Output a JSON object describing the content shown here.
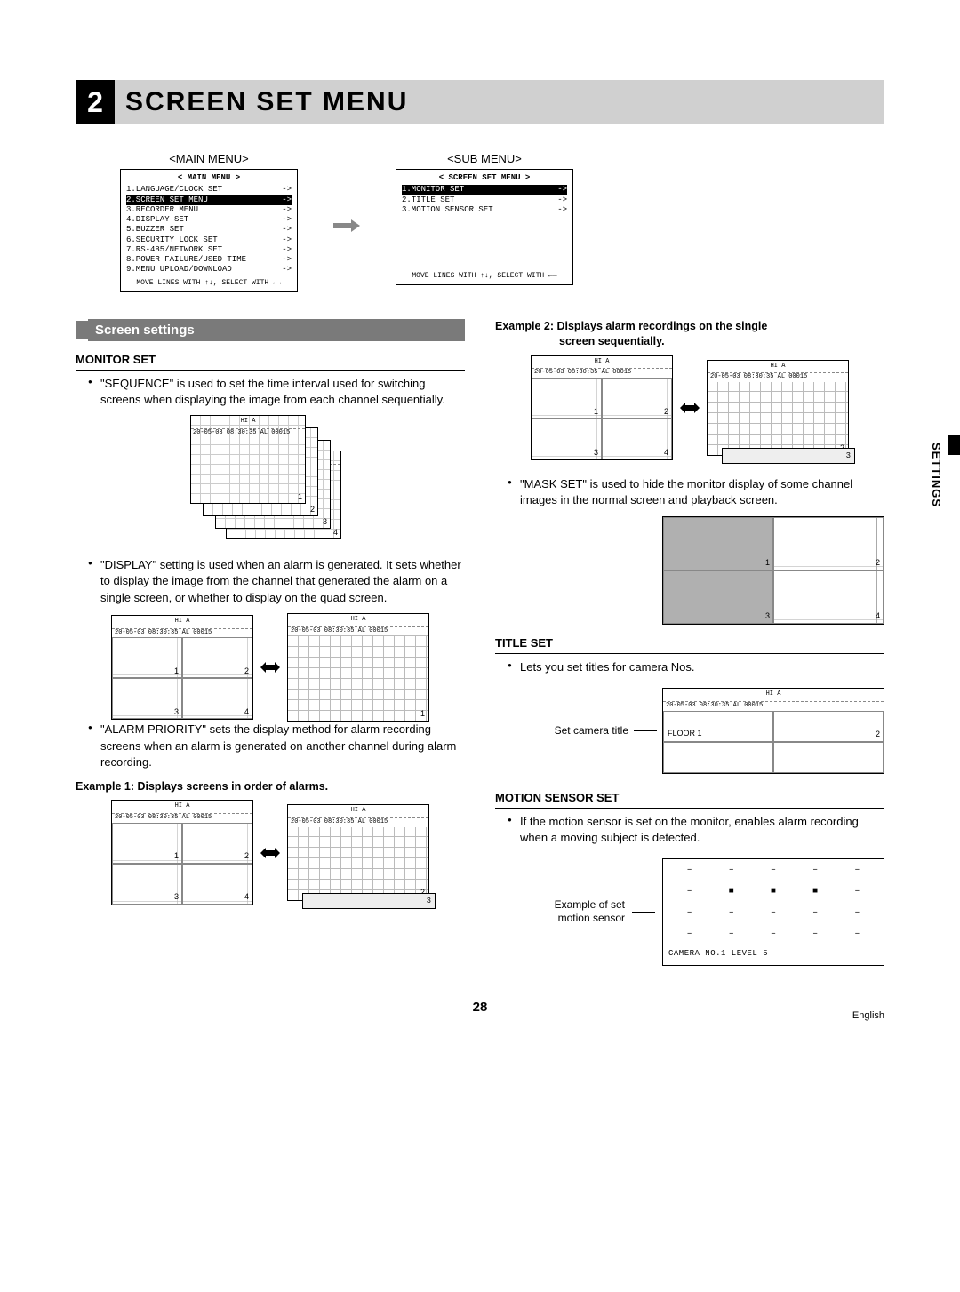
{
  "page": {
    "section_number": "2",
    "title": "SCREEN SET MENU",
    "side_tab": "SETTINGS",
    "page_number": "28",
    "language": "English"
  },
  "menus": {
    "main_label": "<MAIN MENU>",
    "sub_label": "<SUB MENU>",
    "main_header": "< MAIN MENU >",
    "sub_header": "< SCREEN SET MENU >",
    "footer": "MOVE LINES WITH ↑↓, SELECT WITH ←→",
    "main_selected_index": 1,
    "sub_selected_index": 0,
    "main_items": [
      "1.LANGUAGE/CLOCK SET",
      "2.SCREEN SET MENU",
      "3.RECORDER MENU",
      "4.DISPLAY SET",
      "5.BUZZER SET",
      "6.SECURITY LOCK SET",
      "7.RS-485/NETWORK SET",
      "8.POWER FAILURE/USED TIME",
      "9.MENU UPLOAD/DOWNLOAD"
    ],
    "sub_items": [
      "1.MONITOR SET",
      "2.TITLE SET",
      "3.MOTION SENSOR SET"
    ]
  },
  "left": {
    "band": "Screen settings",
    "h1": "MONITOR SET",
    "p1": "\"SEQUENCE\" is used to set the time interval used for switching screens when displaying the image from each channel sequentially.",
    "p2": "\"DISPLAY\" setting is used when an alarm is generated. It sets whether to display the image from the channel that generated the alarm on a single screen, or whether to display on the quad screen.",
    "p3": "\"ALARM PRIORITY\" sets the display method for alarm recording screens when an alarm is generated on another channel during alarm recording.",
    "ex1": "Example 1: Displays screens in order of alarms.",
    "quad_nums": [
      "1",
      "2",
      "3",
      "4"
    ],
    "single_num_1": "1",
    "single_seq": [
      "2",
      "3"
    ]
  },
  "right": {
    "ex2a": "Example 2: Displays alarm recordings on the single",
    "ex2b": "screen sequentially.",
    "p_mask": "\"MASK SET\" is used to hide the monitor display of some channel images in the normal screen and playback screen.",
    "h_title": "TITLE SET",
    "p_title": "Lets you set titles for camera Nos.",
    "lead_title": "Set camera title",
    "floor_label": "FLOOR 1",
    "cell2": "2",
    "h_motion": "MOTION SENSOR SET",
    "p_motion": "If the motion sensor is set on the monitor, enables alarm recording when a moving subject is detected.",
    "lead_motion_a": "Example of set",
    "lead_motion_b": "motion sensor",
    "motion_rows": [
      [
        "–",
        "–",
        "–",
        "–",
        "–"
      ],
      [
        "–",
        "■",
        "■",
        "■",
        "–"
      ],
      [
        "–",
        "–",
        "–",
        "–",
        "–"
      ],
      [
        "–",
        "–",
        "–",
        "–",
        "–"
      ]
    ],
    "motion_foot": "CAMERA NO.1 LEVEL 5",
    "mask_nums": [
      "1",
      "2",
      "3",
      "4"
    ],
    "seq2": [
      "2",
      "3"
    ]
  },
  "timestamp": {
    "hi": "HI  A",
    "line": "20-05-03 08:30:35 AL  00015"
  },
  "colors": {
    "band": "#7a7a7a",
    "title_bg": "#d0d0d0",
    "black": "#000000",
    "grid": "#bbbbbb",
    "mask": "#b0b0b0"
  }
}
